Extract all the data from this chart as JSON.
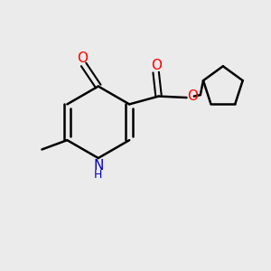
{
  "background_color": "#ebebeb",
  "bond_color": "#000000",
  "atom_colors": {
    "O": "#ff0000",
    "N": "#0000bb",
    "C": "#000000"
  },
  "figsize": [
    3.0,
    3.0
  ],
  "dpi": 100
}
